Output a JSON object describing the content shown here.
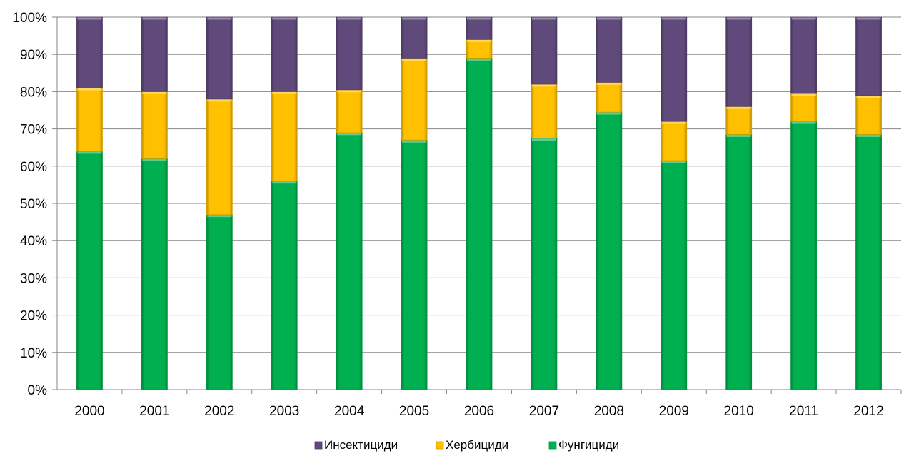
{
  "chart_data": {
    "type": "bar",
    "stacked": true,
    "percent": true,
    "categories": [
      "2000",
      "2001",
      "2002",
      "2003",
      "2004",
      "2005",
      "2006",
      "2007",
      "2008",
      "2009",
      "2010",
      "2011",
      "2012"
    ],
    "series": [
      {
        "name": "Фунгициди",
        "color": "#00b050",
        "values": [
          64,
          62,
          47,
          56,
          69,
          67,
          89,
          67.5,
          74.5,
          61.5,
          68.5,
          72,
          68.5
        ]
      },
      {
        "name": "Хербициди",
        "color": "#ffc000",
        "values": [
          17,
          18,
          31,
          24,
          11.5,
          22,
          5,
          14.5,
          8,
          10.5,
          7.5,
          7.5,
          10.5
        ]
      },
      {
        "name": "Инсектициди",
        "color": "#604a7b",
        "values": [
          19,
          20,
          22,
          20,
          19.5,
          11,
          6,
          18,
          17.5,
          28,
          24,
          20.5,
          21
        ]
      }
    ],
    "y_ticks": [
      "0%",
      "10%",
      "20%",
      "30%",
      "40%",
      "50%",
      "60%",
      "70%",
      "80%",
      "90%",
      "100%"
    ],
    "ylim": [
      0,
      100
    ],
    "grid": true,
    "legend": {
      "position": "bottom",
      "order": [
        "Инсектициди",
        "Хербициди",
        "Фунгициди"
      ]
    },
    "title": "",
    "xlabel": "",
    "ylabel": ""
  }
}
